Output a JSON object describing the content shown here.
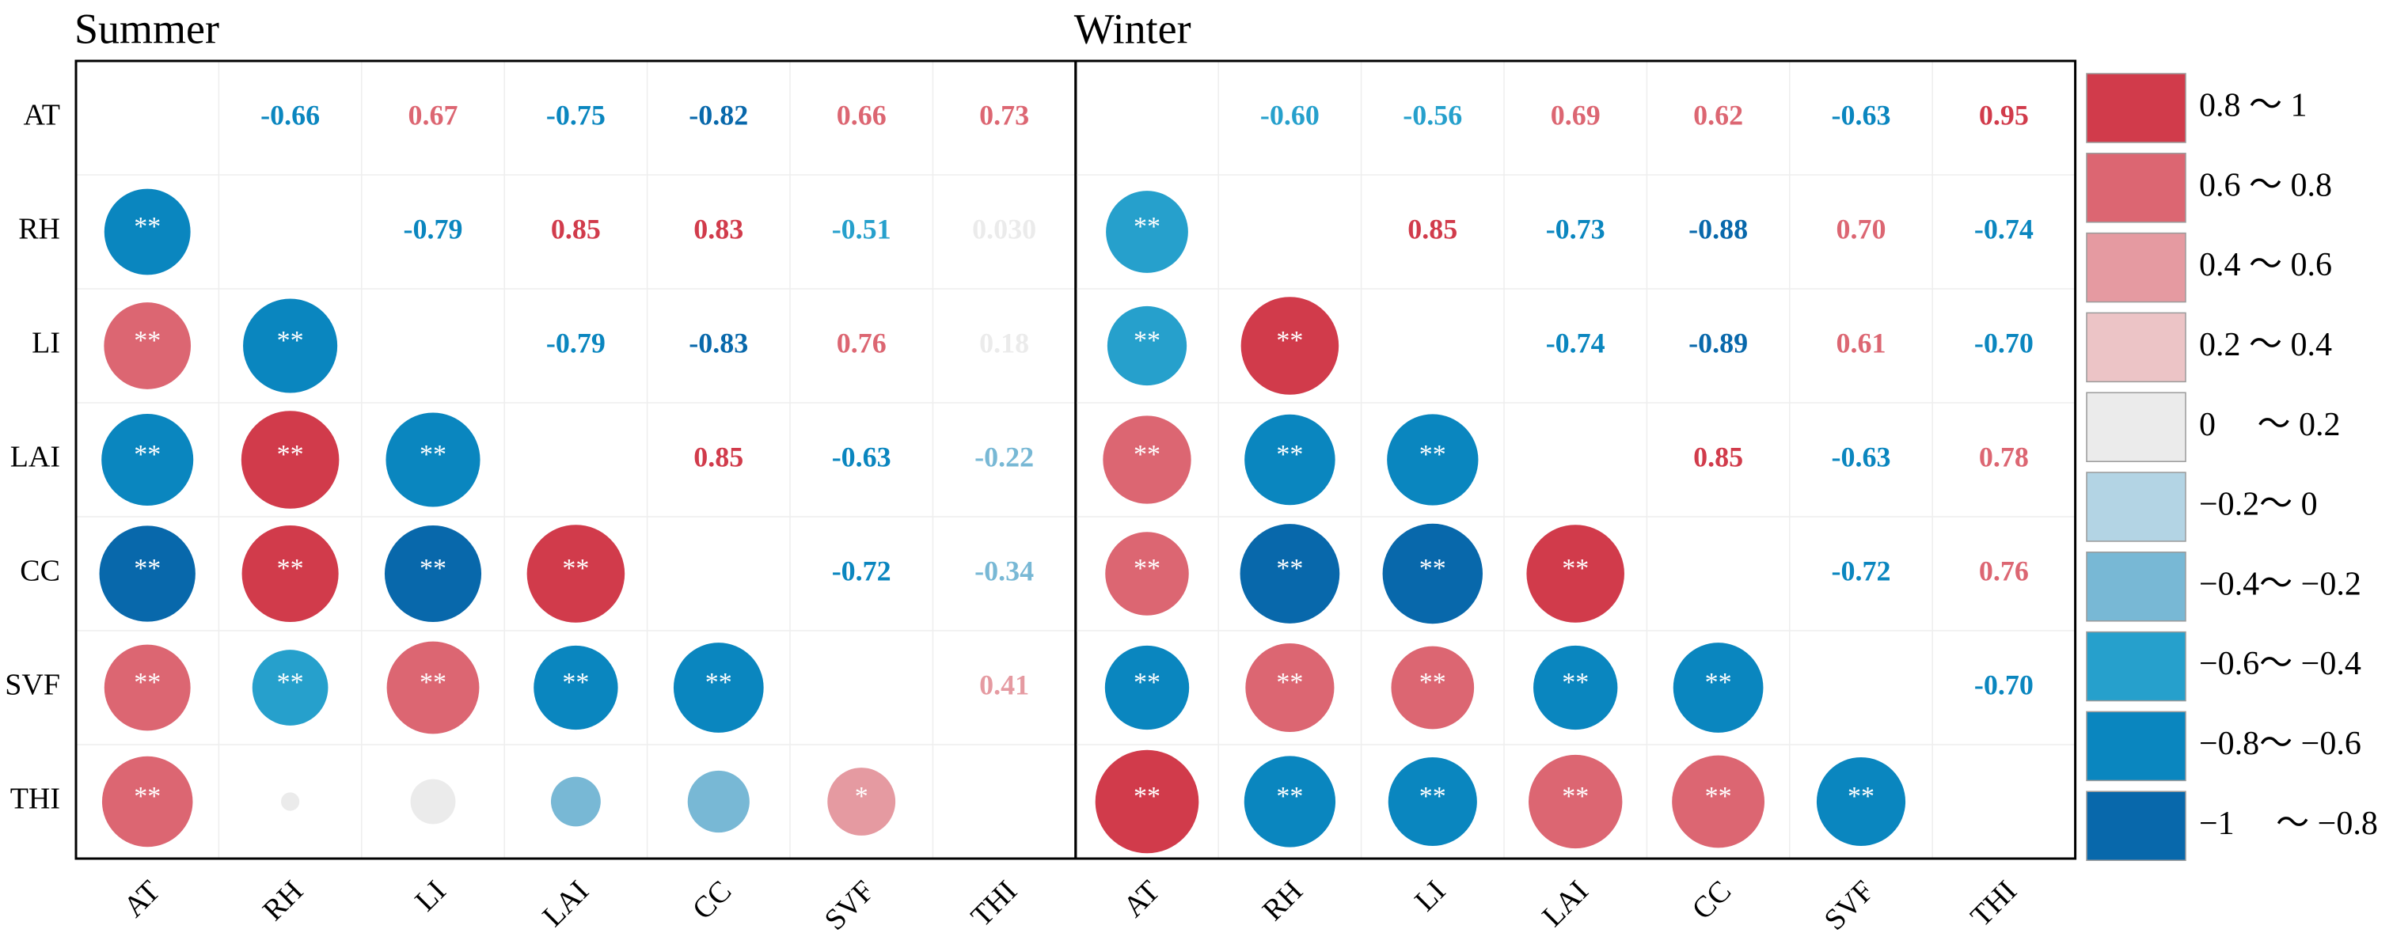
{
  "chart_data": [
    {
      "type": "correlation",
      "title": "Summer",
      "variables": [
        "AT",
        "RH",
        "LI",
        "LAI",
        "CC",
        "SVF",
        "THI"
      ],
      "values": [
        [
          null,
          -0.66,
          0.67,
          -0.75,
          -0.82,
          0.66,
          0.73
        ],
        [
          null,
          null,
          -0.79,
          0.85,
          0.83,
          -0.51,
          0.03
        ],
        [
          null,
          null,
          null,
          -0.79,
          -0.83,
          0.76,
          0.18
        ],
        [
          null,
          null,
          null,
          null,
          0.85,
          -0.63,
          -0.22
        ],
        [
          null,
          null,
          null,
          null,
          null,
          -0.72,
          -0.34
        ],
        [
          null,
          null,
          null,
          null,
          null,
          null,
          0.41
        ],
        [
          null,
          null,
          null,
          null,
          null,
          null,
          null
        ]
      ],
      "value_labels": [
        [
          null,
          "-0.66",
          "0.67",
          "-0.75",
          "-0.82",
          "0.66",
          "0.73"
        ],
        [
          null,
          null,
          "-0.79",
          "0.85",
          "0.83",
          "-0.51",
          "0.030"
        ],
        [
          null,
          null,
          null,
          "-0.79",
          "-0.83",
          "0.76",
          "0.18"
        ],
        [
          null,
          null,
          null,
          null,
          "0.85",
          "-0.63",
          "-0.22"
        ],
        [
          null,
          null,
          null,
          null,
          null,
          "-0.72",
          "-0.34"
        ],
        [
          null,
          null,
          null,
          null,
          null,
          null,
          "0.41"
        ],
        [
          null,
          null,
          null,
          null,
          null,
          null,
          null
        ]
      ],
      "significance": [
        [
          null,
          "**",
          "**",
          "**",
          "**",
          "**",
          "**"
        ],
        [
          null,
          null,
          "**",
          "**",
          "**",
          "**",
          null
        ],
        [
          null,
          null,
          null,
          "**",
          "**",
          "**",
          null
        ],
        [
          null,
          null,
          null,
          null,
          "**",
          "**",
          null
        ],
        [
          null,
          null,
          null,
          null,
          null,
          "**",
          null
        ],
        [
          null,
          null,
          null,
          null,
          null,
          null,
          "*"
        ],
        [
          null,
          null,
          null,
          null,
          null,
          null,
          null
        ]
      ]
    },
    {
      "type": "correlation",
      "title": "Winter",
      "variables": [
        "AT",
        "RH",
        "LI",
        "LAI",
        "CC",
        "SVF",
        "THI"
      ],
      "values": [
        [
          null,
          -0.6,
          -0.56,
          0.69,
          0.62,
          -0.63,
          0.95
        ],
        [
          null,
          null,
          0.85,
          -0.73,
          -0.88,
          0.7,
          -0.74
        ],
        [
          null,
          null,
          null,
          -0.74,
          -0.89,
          0.61,
          -0.7
        ],
        [
          null,
          null,
          null,
          null,
          0.85,
          -0.63,
          0.78
        ],
        [
          null,
          null,
          null,
          null,
          null,
          -0.72,
          0.76
        ],
        [
          null,
          null,
          null,
          null,
          null,
          null,
          -0.7
        ],
        [
          null,
          null,
          null,
          null,
          null,
          null,
          null
        ]
      ],
      "value_labels": [
        [
          null,
          "-0.60",
          "-0.56",
          "0.69",
          "0.62",
          "-0.63",
          "0.95"
        ],
        [
          null,
          null,
          "0.85",
          "-0.73",
          "-0.88",
          "0.70",
          "-0.74"
        ],
        [
          null,
          null,
          null,
          "-0.74",
          "-0.89",
          "0.61",
          "-0.70"
        ],
        [
          null,
          null,
          null,
          null,
          "0.85",
          "-0.63",
          "0.78"
        ],
        [
          null,
          null,
          null,
          null,
          null,
          "-0.72",
          "0.76"
        ],
        [
          null,
          null,
          null,
          null,
          null,
          null,
          "-0.70"
        ],
        [
          null,
          null,
          null,
          null,
          null,
          null,
          null
        ]
      ],
      "significance": [
        [
          null,
          "**",
          "**",
          "**",
          "**",
          "**",
          "**"
        ],
        [
          null,
          null,
          "**",
          "**",
          "**",
          "**",
          "**"
        ],
        [
          null,
          null,
          null,
          "**",
          "**",
          "**",
          "**"
        ],
        [
          null,
          null,
          null,
          null,
          "**",
          "**",
          "**"
        ],
        [
          null,
          null,
          null,
          null,
          null,
          "**",
          "**"
        ],
        [
          null,
          null,
          null,
          null,
          null,
          null,
          "**"
        ],
        [
          null,
          null,
          null,
          null,
          null,
          null,
          null
        ]
      ]
    }
  ],
  "legend": {
    "bins": [
      1,
      0.8,
      0.6,
      0.4,
      0.2,
      0,
      -0.2,
      -0.4,
      -0.6,
      -0.8,
      -1
    ],
    "labels": [
      "0.8 ～ 1",
      "0.6 ～ 0.8",
      "0.4 ～ 0.6",
      "0.2 ～ 0.4",
      "0 　～ 0.2",
      "−0.2～ 0",
      "−0.4～ −0.2",
      "−0.6～ −0.4",
      "−0.8～ −0.6",
      "−1 　～ −0.8"
    ],
    "colors": [
      "#d13b4b",
      "#dc6672",
      "#e59aa1",
      "#ecc4c6",
      "#ebebeb",
      "#b3d4e4",
      "#78b8d5",
      "#26a0cc",
      "#0a86bf",
      "#0868ab"
    ]
  }
}
